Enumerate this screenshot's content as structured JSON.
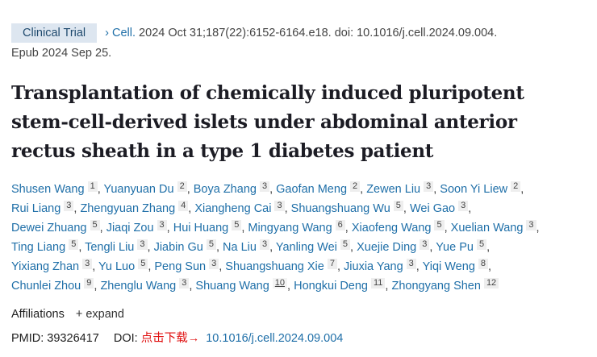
{
  "citation": {
    "badge": "Clinical Trial",
    "journal": "Cell.",
    "details": " 2024 Oct 31;187(22):6152-6164.e18. doi: 10.1016/j.cell.2024.09.004.",
    "epub": "Epub 2024 Sep 25."
  },
  "title": "Transplantation of chemically induced pluripotent stem-cell-derived islets under abdominal anterior rectus sheath in a type 1 diabetes patient",
  "author_rows": [
    [
      {
        "name": "Shusen Wang",
        "aff": "1"
      },
      {
        "name": "Yuanyuan Du",
        "aff": "2"
      },
      {
        "name": "Boya Zhang",
        "aff": "3"
      },
      {
        "name": "Gaofan Meng",
        "aff": "2"
      },
      {
        "name": "Zewen Liu",
        "aff": "3"
      },
      {
        "name": "Soon Yi Liew",
        "aff": "2"
      }
    ],
    [
      {
        "name": "Rui Liang",
        "aff": "3"
      },
      {
        "name": "Zhengyuan Zhang",
        "aff": "4"
      },
      {
        "name": "Xiangheng Cai",
        "aff": "3"
      },
      {
        "name": "Shuangshuang Wu",
        "aff": "5"
      },
      {
        "name": "Wei Gao",
        "aff": "3"
      }
    ],
    [
      {
        "name": "Dewei Zhuang",
        "aff": "5"
      },
      {
        "name": "Jiaqi Zou",
        "aff": "3"
      },
      {
        "name": "Hui Huang",
        "aff": "5"
      },
      {
        "name": "Mingyang Wang",
        "aff": "6"
      },
      {
        "name": "Xiaofeng Wang",
        "aff": "5"
      },
      {
        "name": "Xuelian Wang",
        "aff": "3"
      }
    ],
    [
      {
        "name": "Ting Liang",
        "aff": "5"
      },
      {
        "name": "Tengli Liu",
        "aff": "3"
      },
      {
        "name": "Jiabin Gu",
        "aff": "5"
      },
      {
        "name": "Na Liu",
        "aff": "3"
      },
      {
        "name": "Yanling Wei",
        "aff": "5"
      },
      {
        "name": "Xuejie Ding",
        "aff": "3"
      },
      {
        "name": "Yue Pu",
        "aff": "5"
      }
    ],
    [
      {
        "name": "Yixiang Zhan",
        "aff": "3"
      },
      {
        "name": "Yu Luo",
        "aff": "5"
      },
      {
        "name": "Peng Sun",
        "aff": "3"
      },
      {
        "name": "Shuangshuang Xie",
        "aff": "7"
      },
      {
        "name": "Jiuxia Yang",
        "aff": "3"
      },
      {
        "name": "Yiqi Weng",
        "aff": "8"
      }
    ],
    [
      {
        "name": "Chunlei Zhou",
        "aff": "9"
      },
      {
        "name": "Zhenglu Wang",
        "aff": "3"
      },
      {
        "name": "Shuang Wang",
        "aff": "10",
        "underline": true
      },
      {
        "name": "Hongkui Deng",
        "aff": "11"
      },
      {
        "name": "Zhongyang Shen",
        "aff": "12"
      }
    ]
  ],
  "affiliations": {
    "label": "Affiliations",
    "expand_icon": "plus-icon",
    "expand": "expand"
  },
  "ids": {
    "pmid_label": "PMID: 39326417",
    "doi_label": "DOI:",
    "download_text": "点击下载→",
    "doi": "10.1016/j.cell.2024.09.004"
  },
  "colors": {
    "link": "#1f6fa8",
    "badge_bg": "#dde6f0",
    "download": "#e01010"
  }
}
